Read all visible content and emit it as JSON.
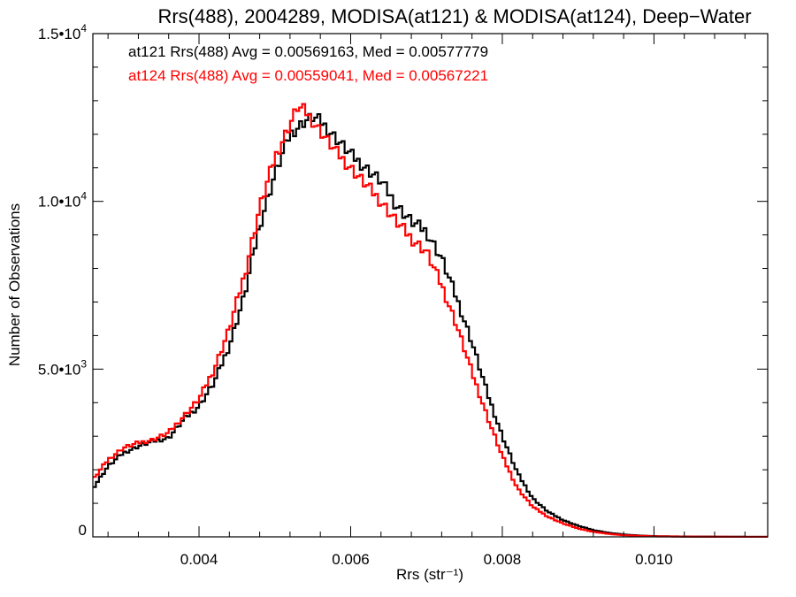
{
  "chart_data": {
    "type": "line",
    "title": "Rrs(488), 2004289, MODISA(at121) & MODISA(at124), Deep−Water",
    "xlabel": "Rrs (str⁻¹)",
    "ylabel": "Number of Observations",
    "xlim": [
      0.0026,
      0.0115
    ],
    "ylim": [
      0,
      15000
    ],
    "grid": false,
    "x_ticks": [
      {
        "value": 0.004,
        "label": "0.004"
      },
      {
        "value": 0.006,
        "label": "0.006"
      },
      {
        "value": 0.008,
        "label": "0.008"
      },
      {
        "value": 0.01,
        "label": "0.010"
      }
    ],
    "y_ticks": [
      {
        "value": 0,
        "mantissa": "0",
        "exp": ""
      },
      {
        "value": 5000,
        "mantissa": "5.0•10",
        "exp": "3"
      },
      {
        "value": 10000,
        "mantissa": "1.0•10",
        "exp": "4"
      },
      {
        "value": 15000,
        "mantissa": "1.5•10",
        "exp": "4"
      }
    ],
    "annotations": [
      {
        "text": "at121 Rrs(488) Avg = 0.00569163, Med = 0.00577779",
        "color": "#000000"
      },
      {
        "text": "at124 Rrs(488) Avg = 0.00559041, Med = 0.00567221",
        "color": "#ff0000"
      }
    ],
    "series": [
      {
        "color": "#000000",
        "x": [
          0.0026,
          0.0028,
          0.003,
          0.0032,
          0.0034,
          0.0036,
          0.0038,
          0.004,
          0.0042,
          0.0044,
          0.0046,
          0.0048,
          0.005,
          0.0052,
          0.0054,
          0.0055,
          0.0056,
          0.0058,
          0.006,
          0.0062,
          0.0064,
          0.0066,
          0.0068,
          0.007,
          0.0072,
          0.0074,
          0.0076,
          0.0078,
          0.008,
          0.0082,
          0.0084,
          0.0086,
          0.0088,
          0.009,
          0.0092,
          0.0094,
          0.0096,
          0.0098,
          0.01,
          0.0105,
          0.011,
          0.0115
        ],
        "y": [
          1450,
          2100,
          2500,
          2700,
          2850,
          2950,
          3500,
          3900,
          4600,
          5700,
          7200,
          9300,
          10800,
          12000,
          12400,
          12500,
          12400,
          11900,
          11400,
          11000,
          10600,
          9900,
          9400,
          9100,
          8300,
          7100,
          5800,
          4300,
          3000,
          1900,
          1150,
          750,
          500,
          330,
          200,
          120,
          70,
          40,
          20,
          8,
          3,
          1
        ]
      },
      {
        "color": "#ff0000",
        "x": [
          0.0026,
          0.0028,
          0.003,
          0.0032,
          0.0034,
          0.0036,
          0.0038,
          0.004,
          0.0042,
          0.0044,
          0.0046,
          0.0048,
          0.005,
          0.0052,
          0.0053,
          0.0054,
          0.0056,
          0.0058,
          0.006,
          0.0062,
          0.0064,
          0.0066,
          0.0068,
          0.007,
          0.0072,
          0.0074,
          0.0076,
          0.0078,
          0.008,
          0.0082,
          0.0084,
          0.0086,
          0.0088,
          0.009,
          0.0092,
          0.0094,
          0.0096,
          0.0098,
          0.01,
          0.0105,
          0.011,
          0.0115
        ],
        "y": [
          1700,
          2300,
          2650,
          2800,
          2900,
          3100,
          3600,
          4100,
          5000,
          6200,
          7800,
          9800,
          11300,
          12300,
          12800,
          12700,
          12100,
          11500,
          11000,
          10500,
          10000,
          9400,
          8900,
          8500,
          7500,
          6300,
          4900,
          3600,
          2400,
          1450,
          900,
          600,
          400,
          250,
          150,
          90,
          50,
          30,
          15,
          6,
          2,
          1
        ]
      }
    ]
  }
}
